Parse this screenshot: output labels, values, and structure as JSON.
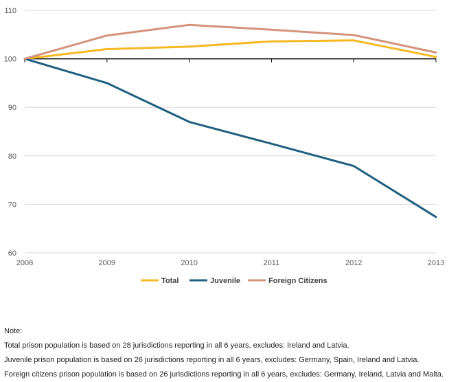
{
  "chart_data": {
    "type": "line",
    "title": "",
    "xlabel": "",
    "ylabel": "",
    "x": [
      "2008",
      "2009",
      "2010",
      "2011",
      "2012",
      "2013"
    ],
    "ylim": [
      60,
      110
    ],
    "yticks": [
      60,
      70,
      80,
      90,
      100,
      110
    ],
    "grid": true,
    "legend_position": "bottom",
    "series": [
      {
        "name": "Total",
        "color": "#F5B823",
        "values": [
          100,
          102,
          102.5,
          103.6,
          103.8,
          100.4
        ]
      },
      {
        "name": "Juvenile",
        "color": "#1F5F7F",
        "values": [
          100,
          95,
          87,
          82.5,
          77.9,
          67.4
        ]
      },
      {
        "name": "Foreign Citizens",
        "color": "#D4937B",
        "values": [
          100,
          104.8,
          107,
          106,
          104.9,
          101.3
        ]
      }
    ]
  },
  "notes": {
    "heading": "Note:",
    "lines": [
      "Total prison population is based on 28 jurisdictions reporting in all 6 years, excludes: Ireland and Latvia.",
      "Juvenile prison population is based on 26 jurisdictions reporting in all 6 years, excludes: Germany, Spain, Ireland and Latvia.",
      "Foreign citizens prison population is based on 26 jurisdictions reporting in all 6 years, excludes: Germany, Ireland, Latvia and Malta."
    ]
  }
}
